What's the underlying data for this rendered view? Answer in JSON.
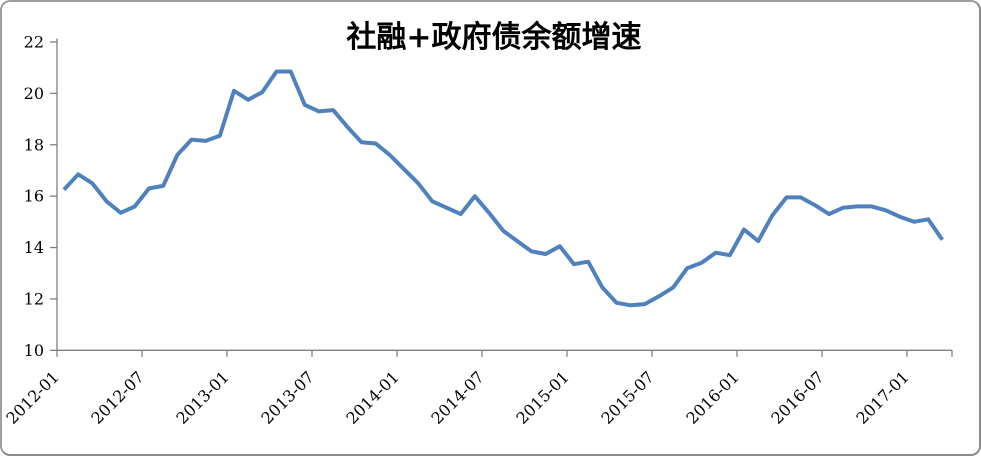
{
  "chart_data": {
    "type": "line",
    "title": "社融+政府债余额增速",
    "xlabel": "",
    "ylabel": "",
    "grid": false,
    "legend": "none",
    "ylim": [
      10,
      22
    ],
    "y_ticks": [
      10,
      12,
      14,
      16,
      18,
      20,
      22
    ],
    "x_tick_labels": [
      "2012-01",
      "2012-07",
      "2013-01",
      "2013-07",
      "2014-01",
      "2014-07",
      "2015-01",
      "2015-07",
      "2016-01",
      "2016-07",
      "2017-01"
    ],
    "x": [
      "2012-01",
      "2012-02",
      "2012-03",
      "2012-04",
      "2012-05",
      "2012-06",
      "2012-07",
      "2012-08",
      "2012-09",
      "2012-10",
      "2012-11",
      "2012-12",
      "2013-01",
      "2013-02",
      "2013-03",
      "2013-04",
      "2013-05",
      "2013-06",
      "2013-07",
      "2013-08",
      "2013-09",
      "2013-10",
      "2013-11",
      "2013-12",
      "2014-01",
      "2014-02",
      "2014-03",
      "2014-04",
      "2014-05",
      "2014-06",
      "2014-07",
      "2014-08",
      "2014-09",
      "2014-10",
      "2014-11",
      "2014-12",
      "2015-01",
      "2015-02",
      "2015-03",
      "2015-04",
      "2015-05",
      "2015-06",
      "2015-07",
      "2015-08",
      "2015-09",
      "2015-10",
      "2015-11",
      "2015-12",
      "2016-01",
      "2016-02",
      "2016-03",
      "2016-04",
      "2016-05",
      "2016-06",
      "2016-07",
      "2016-08",
      "2016-09",
      "2016-10",
      "2016-11",
      "2016-12",
      "2017-01",
      "2017-02",
      "2017-03"
    ],
    "values": [
      16.25,
      16.85,
      16.5,
      15.8,
      15.35,
      15.6,
      16.3,
      16.4,
      17.6,
      18.2,
      18.15,
      18.35,
      20.1,
      19.75,
      20.05,
      20.85,
      20.85,
      19.55,
      19.3,
      19.35,
      18.7,
      18.1,
      18.05,
      17.6,
      17.05,
      16.5,
      15.8,
      15.55,
      15.3,
      16.0,
      15.35,
      14.65,
      14.25,
      13.85,
      13.75,
      14.05,
      13.35,
      13.45,
      12.45,
      11.85,
      11.75,
      11.8,
      12.1,
      12.45,
      13.2,
      13.4,
      13.8,
      13.7,
      14.7,
      14.25,
      15.25,
      15.95,
      15.95,
      15.65,
      15.3,
      15.55,
      15.6,
      15.6,
      15.45,
      15.2,
      15.0,
      15.1,
      14.3
    ],
    "line_color": "#4F81BD",
    "axis_color": "#7f7f7f",
    "text_color": "#000000"
  }
}
